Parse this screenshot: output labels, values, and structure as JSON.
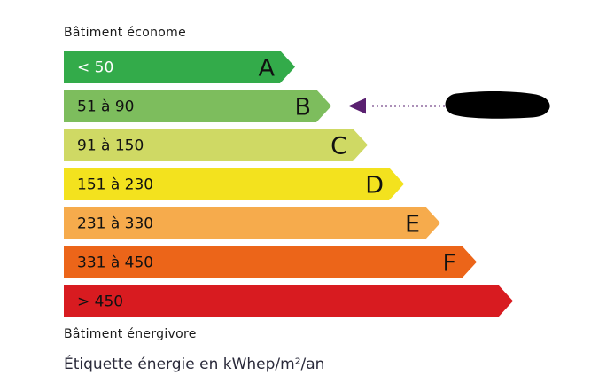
{
  "header": {
    "top_label": "Bâtiment économe"
  },
  "footer": {
    "bottom_label": "Bâtiment énergivore",
    "unit_label": "Étiquette énergie en kWhep/m²/an"
  },
  "classes": [
    {
      "range": "< 50",
      "letter": "A",
      "color": "#33ab4a",
      "text_color": "#ffffff"
    },
    {
      "range": "51 à 90",
      "letter": "B",
      "color": "#7dbd5d",
      "text_color": "#111111"
    },
    {
      "range": "91 à 150",
      "letter": "C",
      "color": "#cfd964",
      "text_color": "#111111"
    },
    {
      "range": "151 à 230",
      "letter": "D",
      "color": "#f3e21e",
      "text_color": "#111111"
    },
    {
      "range": "231 à 330",
      "letter": "E",
      "color": "#f6ab4c",
      "text_color": "#111111"
    },
    {
      "range": "331 à 450",
      "letter": "F",
      "color": "#ec6519",
      "text_color": "#111111"
    },
    {
      "range": "> 450",
      "letter": "",
      "color": "#d81b20",
      "text_color": "#111111"
    }
  ],
  "indicator": {
    "class_index": 1,
    "color": "#5a2070",
    "value_redacted": true
  }
}
